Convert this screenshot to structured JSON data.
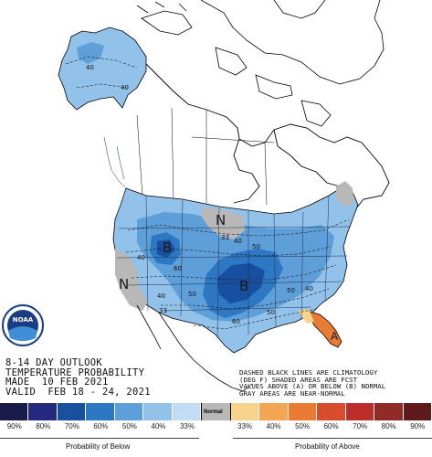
{
  "header": {
    "title_lines": [
      "8-14 DAY OUTLOOK",
      "TEMPERATURE PROBABILITY",
      "MADE  10 FEB 2021",
      "VALID  FEB 18 - 24, 2021"
    ]
  },
  "notes": {
    "lines": [
      "DASHED BLACK LINES ARE CLIMATOLOGY",
      "(DEG F) SHADED AREAS ARE FCST",
      "VALUES ABOVE (A) OR BELOW (B) NORMAL",
      "GRAY AREAS ARE NEAR-NORMAL"
    ]
  },
  "logo": {
    "text": "NOAA"
  },
  "map_labels": {
    "b_main": "B",
    "b_second": "B",
    "n_north": "N",
    "n_west": "N",
    "a_florida": "A",
    "contours": [
      "40",
      "40",
      "33",
      "40",
      "50",
      "40",
      "60",
      "50",
      "40",
      "33",
      "40",
      "50",
      "60",
      "50"
    ]
  },
  "legend": {
    "values": [
      "90%",
      "80%",
      "70%",
      "60%",
      "50%",
      "40%",
      "33%",
      "33%",
      "40%",
      "50%",
      "60%",
      "70%",
      "80%",
      "90%"
    ],
    "normal_label": "Normal",
    "below_label": "Probability of Below",
    "above_label": "Probability of Above",
    "colors": {
      "below": [
        "#1a1b4b",
        "#25287f",
        "#184f9e",
        "#2e77c3",
        "#5e9ed9",
        "#92c2ea",
        "#c2dcf5"
      ],
      "normal": "#b8b8b8",
      "above": [
        "#f6d48c",
        "#f2a653",
        "#ea7b35",
        "#d84c2e",
        "#bd2e2a",
        "#8f2a24",
        "#5e1a1a"
      ]
    }
  }
}
